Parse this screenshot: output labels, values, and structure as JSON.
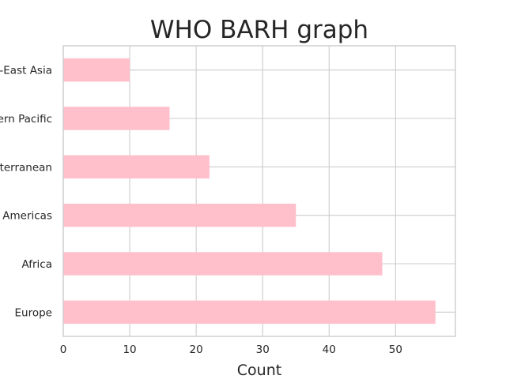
{
  "chart_data": {
    "type": "bar",
    "orientation": "horizontal",
    "title": "WHO BARH graph",
    "xlabel": "Count",
    "ylabel": "",
    "categories": [
      "Europe",
      "Africa",
      "Americas",
      "Mediterranean",
      "Western Pacific",
      "South-East Asia"
    ],
    "category_labels_visible": [
      "Europe",
      "Africa",
      "Americas",
      "iterranean",
      "ern Pacific",
      "-East Asia"
    ],
    "values": [
      56,
      48,
      35,
      22,
      16,
      10
    ],
    "xlim": [
      0,
      59
    ],
    "xticks": [
      0,
      10,
      20,
      30,
      40,
      50
    ],
    "grid": true,
    "bar_color": "#ffc0cb"
  }
}
